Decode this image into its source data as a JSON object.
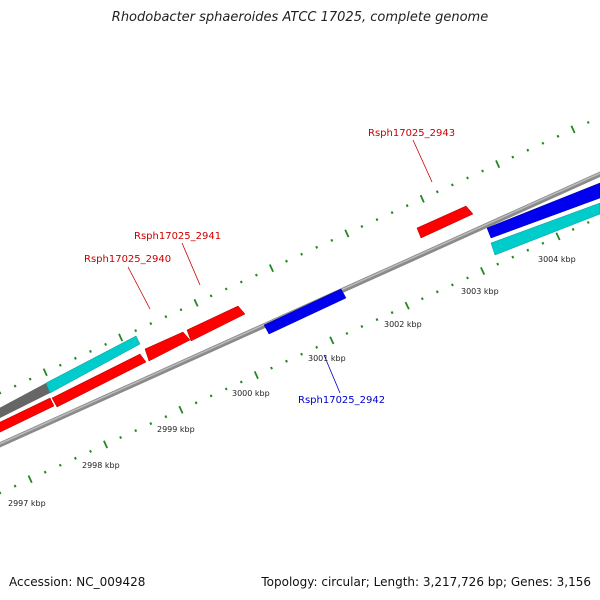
{
  "title": "Rhodobacter sphaeroides ATCC 17025, complete genome",
  "footer": {
    "accession": "Accession: NC_009428",
    "stats": "Topology: circular; Length: 3,217,726 bp; Genes: 3,156"
  },
  "colors": {
    "forward_gene": "#ff0000",
    "reverse_gene": "#0000ee",
    "feature_cyan": "#00cccc",
    "feature_gray": "#666666",
    "backbone": "#999999",
    "tick": "#228822",
    "label_red": "#cc0000",
    "label_blue": "#0000cc"
  },
  "axis_labels": [
    "2997 kbp",
    "2998 kbp",
    "2999 kbp",
    "3000 kbp",
    "3001 kbp",
    "3002 kbp",
    "3003 kbp",
    "3004 kbp"
  ],
  "gene_labels": [
    {
      "name": "Rsph17025_2940",
      "color": "label_red"
    },
    {
      "name": "Rsph17025_2941",
      "color": "label_red"
    },
    {
      "name": "Rsph17025_2942",
      "color": "label_blue"
    },
    {
      "name": "Rsph17025_2943",
      "color": "label_red"
    }
  ]
}
